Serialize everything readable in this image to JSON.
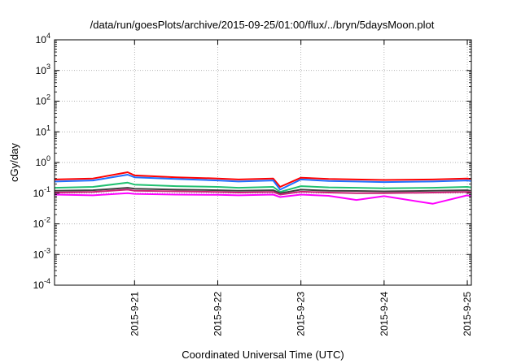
{
  "chart_data": {
    "type": "line",
    "title": "/data/run/goesPlots/archive/2015-09-25/01:00/flux/../bryn/5daysMoon.plot",
    "xlabel": "Coordinated Universal Time (UTC)",
    "ylabel": "cGy/day",
    "y_scale": "log",
    "ylim_exponents": [
      -4,
      4
    ],
    "y_tick_labels": [
      {
        "base": "10",
        "exp": "-4"
      },
      {
        "base": "10",
        "exp": "-3"
      },
      {
        "base": "10",
        "exp": "-2"
      },
      {
        "base": "10",
        "exp": "-1"
      },
      {
        "base": "10",
        "exp": "0"
      },
      {
        "base": "10",
        "exp": "1"
      },
      {
        "base": "10",
        "exp": "2"
      },
      {
        "base": "10",
        "exp": "3"
      },
      {
        "base": "10",
        "exp": "4"
      }
    ],
    "xlim": [
      "2015-09-20T00:55",
      "2015-09-25T01:10"
    ],
    "x_ticks": [
      "2015-9-21",
      "2015-9-22",
      "2015-9-23",
      "2015-9-24",
      "2015-9-25"
    ],
    "grid": true,
    "legend": "none",
    "x": [
      "2015-09-20T01:00",
      "2015-09-20T12:00",
      "2015-09-20T22:00",
      "2015-09-21T00:00",
      "2015-09-21T12:00",
      "2015-09-22T00:00",
      "2015-09-22T06:00",
      "2015-09-22T16:00",
      "2015-09-22T18:00",
      "2015-09-23T00:00",
      "2015-09-23T08:00",
      "2015-09-23T16:00",
      "2015-09-24T00:00",
      "2015-09-24T14:00",
      "2015-09-25T00:00",
      "2015-09-25T01:00"
    ],
    "series": [
      {
        "color": "#ff0000",
        "values": [
          0.28,
          0.3,
          0.48,
          0.38,
          0.33,
          0.3,
          0.28,
          0.3,
          0.16,
          0.32,
          0.29,
          0.28,
          0.27,
          0.28,
          0.3,
          0.29
        ]
      },
      {
        "color": "#1e6fff",
        "values": [
          0.24,
          0.26,
          0.4,
          0.33,
          0.29,
          0.26,
          0.24,
          0.26,
          0.13,
          0.28,
          0.25,
          0.24,
          0.23,
          0.24,
          0.26,
          0.25
        ]
      },
      {
        "color": "#20c070",
        "values": [
          0.15,
          0.16,
          0.22,
          0.19,
          0.17,
          0.16,
          0.15,
          0.16,
          0.11,
          0.17,
          0.155,
          0.15,
          0.145,
          0.15,
          0.16,
          0.155
        ]
      },
      {
        "color": "#404040",
        "values": [
          0.12,
          0.125,
          0.15,
          0.14,
          0.13,
          0.125,
          0.12,
          0.125,
          0.1,
          0.13,
          0.12,
          0.118,
          0.115,
          0.12,
          0.125,
          0.12
        ]
      },
      {
        "color": "#cc2277",
        "values": [
          0.105,
          0.11,
          0.13,
          0.12,
          0.115,
          0.11,
          0.105,
          0.11,
          0.09,
          0.112,
          0.105,
          0.1,
          0.1,
          0.105,
          0.11,
          0.105
        ]
      },
      {
        "color": "#ff00ff",
        "values": [
          0.09,
          0.085,
          0.1,
          0.095,
          0.09,
          0.088,
          0.085,
          0.09,
          0.075,
          0.09,
          0.082,
          0.06,
          0.08,
          0.045,
          0.085,
          0.08
        ]
      }
    ]
  }
}
